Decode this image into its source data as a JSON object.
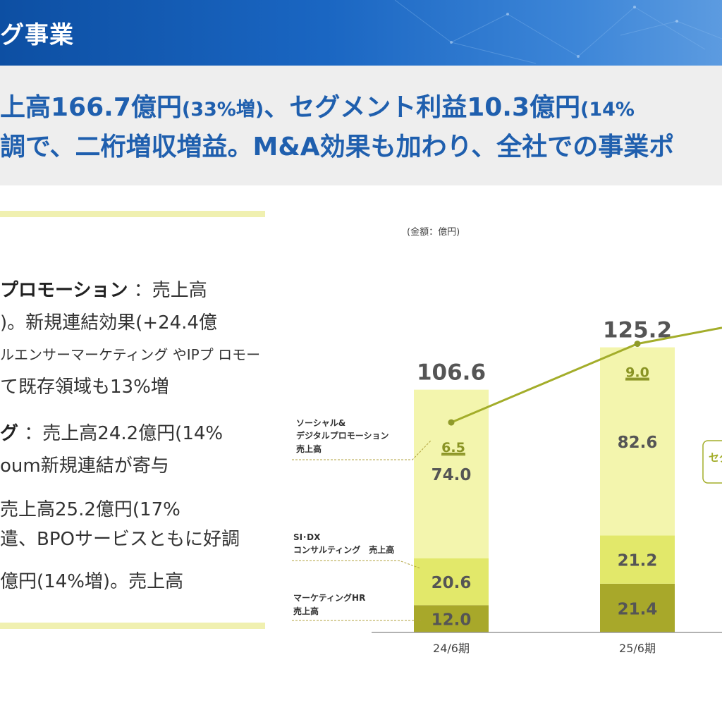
{
  "header": {
    "title": "グ事業"
  },
  "summary": {
    "line1_a": "上高166.7億円",
    "line1_b": "(33%増)",
    "line1_c": "、セグメント利益10.3億円",
    "line1_d": "(14%",
    "line2": "調で、二桁増収増益。M&A効果も加わり、全社での事業ポ"
  },
  "body": {
    "l1a": "プロモーション",
    "l1b": "：売上高",
    "l2": ")。新規連結効果(+24.4億",
    "l3": "ルエンサーマーケティング やIPプ ロモー",
    "l4": "て既存領域も13%増",
    "l5a": "グ",
    "l5b": "：売上高24.2億円(14%",
    "l6": "oum新規連結が寄与",
    "l7": "売上高25.2億円(17%",
    "l8": "遣、BPOサービスともに好調",
    "l9": "億円(14%増)。売上高"
  },
  "chart_data": {
    "type": "bar",
    "unit_label": "(金額：億円)",
    "categories": [
      "24/6期",
      "25/6期"
    ],
    "series": [
      {
        "name": "マーケティングHR 売上高",
        "values": [
          12.0,
          21.4
        ],
        "color": "#a8a82a"
      },
      {
        "name": "SI･DX コンサルティング　売上高",
        "values": [
          20.6,
          21.2
        ],
        "color": "#e2e86a"
      },
      {
        "name": "ソーシャル& デジタルプロモーション 売上高",
        "values": [
          74.0,
          82.6
        ],
        "color": "#f3f5ad"
      }
    ],
    "totals": [
      106.6,
      125.2
    ],
    "line": {
      "values": [
        6.5,
        9.0
      ],
      "color": "#a3ad2a",
      "label_clipped": "セグ"
    },
    "legend_labels": [
      [
        "ソーシャル&",
        "デジタルプロモーション",
        "売上高"
      ],
      [
        "SI･DX",
        "コンサルティング　売上高"
      ],
      [
        "マーケティングHR",
        "売上高"
      ]
    ]
  }
}
